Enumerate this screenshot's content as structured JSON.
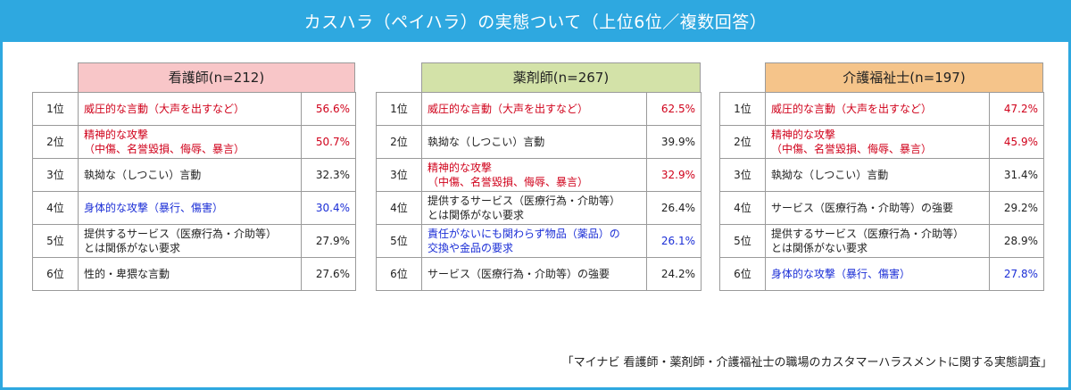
{
  "title": "カスハラ（ペイハラ）の実態ついて（上位6位／複数回答）",
  "panels": [
    {
      "header": "看護師(n=212)",
      "header_color": "#f8c6c8",
      "rows": [
        {
          "rank": "1位",
          "item": "威圧的な言動（大声を出すなど）",
          "pct": "56.6%",
          "color": "red"
        },
        {
          "rank": "2位",
          "item": "精神的な攻撃\n（中傷、名誉毀損、侮辱、暴言）",
          "pct": "50.7%",
          "color": "red"
        },
        {
          "rank": "3位",
          "item": "執拗な（しつこい）言動",
          "pct": "32.3%",
          "color": "black"
        },
        {
          "rank": "4位",
          "item": "身体的な攻撃（暴行、傷害）",
          "pct": "30.4%",
          "color": "blue"
        },
        {
          "rank": "5位",
          "item": "提供するサービス（医療行為・介助等）\nとは関係がない要求",
          "pct": "27.9%",
          "color": "black"
        },
        {
          "rank": "6位",
          "item": "性的・卑猥な言動",
          "pct": "27.6%",
          "color": "black"
        }
      ]
    },
    {
      "header": "薬剤師(n=267)",
      "header_color": "#d3e2a8",
      "rows": [
        {
          "rank": "1位",
          "item": "威圧的な言動（大声を出すなど）",
          "pct": "62.5%",
          "color": "red"
        },
        {
          "rank": "2位",
          "item": "執拗な（しつこい）言動",
          "pct": "39.9%",
          "color": "black"
        },
        {
          "rank": "3位",
          "item": "精神的な攻撃\n（中傷、名誉毀損、侮辱、暴言）",
          "pct": "32.9%",
          "color": "red"
        },
        {
          "rank": "4位",
          "item": "提供するサービス（医療行為・介助等）\nとは関係がない要求",
          "pct": "26.4%",
          "color": "black"
        },
        {
          "rank": "5位",
          "item": "責任がないにも関わらず物品（薬品）の\n交換や金品の要求",
          "pct": "26.1%",
          "color": "blue"
        },
        {
          "rank": "6位",
          "item": "サービス（医療行為・介助等）の強要",
          "pct": "24.2%",
          "color": "black"
        }
      ]
    },
    {
      "header": "介護福祉士(n=197)",
      "header_color": "#f5c48a",
      "rows": [
        {
          "rank": "1位",
          "item": "威圧的な言動（大声を出すなど）",
          "pct": "47.2%",
          "color": "red"
        },
        {
          "rank": "2位",
          "item": "精神的な攻撃\n（中傷、名誉毀損、侮辱、暴言）",
          "pct": "45.9%",
          "color": "red"
        },
        {
          "rank": "3位",
          "item": "執拗な（しつこい）言動",
          "pct": "31.4%",
          "color": "black"
        },
        {
          "rank": "4位",
          "item": "サービス（医療行為・介助等）の強要",
          "pct": "29.2%",
          "color": "black"
        },
        {
          "rank": "5位",
          "item": "提供するサービス（医療行為・介助等）\nとは関係がない要求",
          "pct": "28.9%",
          "color": "black"
        },
        {
          "rank": "6位",
          "item": "身体的な攻撃（暴行、傷害）",
          "pct": "27.8%",
          "color": "blue"
        }
      ]
    }
  ],
  "source": "「マイナビ 看護師・薬剤師・介護福祉士の職場のカスタマーハラスメントに関する実態調査」"
}
